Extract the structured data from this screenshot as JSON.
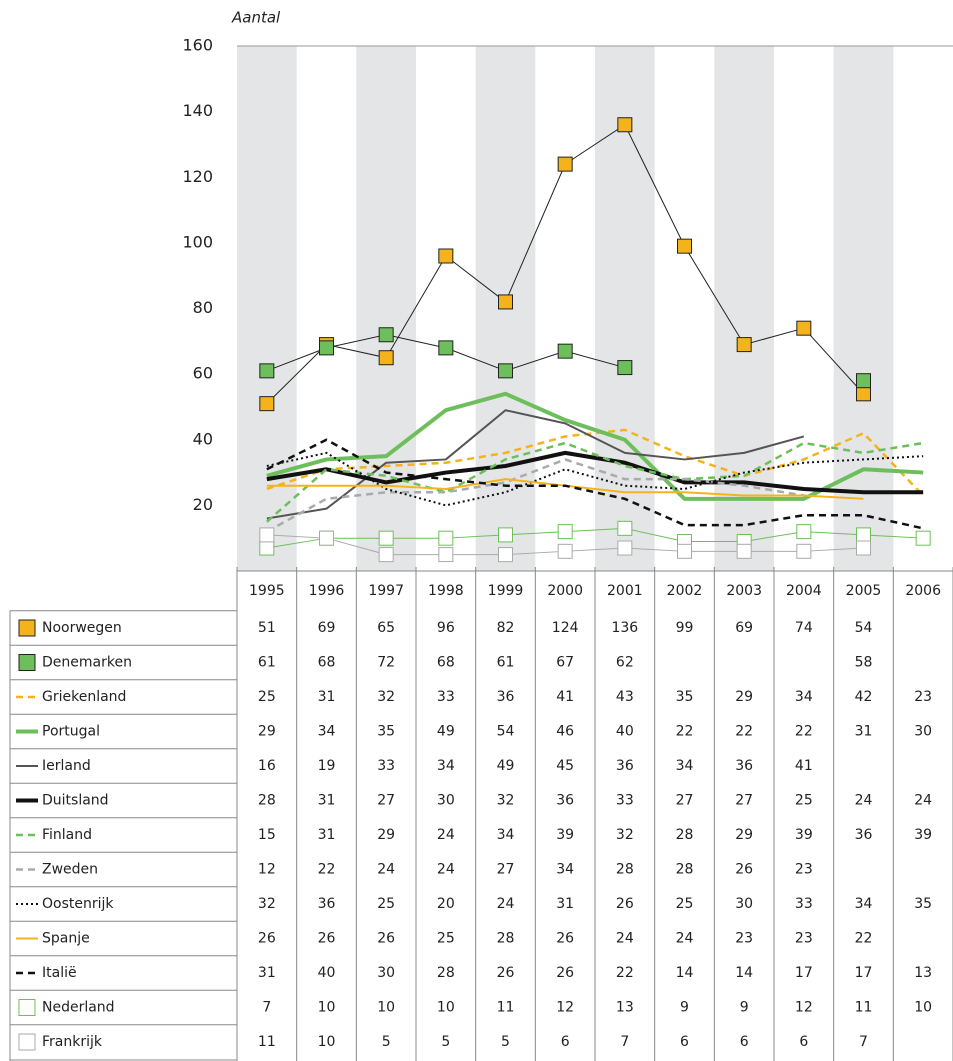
{
  "chart_data": {
    "type": "line",
    "y_label": "Aantal",
    "categories": [
      "1995",
      "1996",
      "1997",
      "1998",
      "1999",
      "2000",
      "2001",
      "2002",
      "2003",
      "2004",
      "2005",
      "2006"
    ],
    "ylim": [
      0,
      160
    ],
    "yticks": [
      20,
      40,
      60,
      80,
      100,
      120,
      140,
      160
    ],
    "series": [
      {
        "name": "Noorwegen",
        "color": "#f5b31b",
        "line": "thin",
        "marker": "filled-square",
        "values": [
          51,
          69,
          65,
          96,
          82,
          124,
          136,
          99,
          69,
          74,
          54,
          null
        ]
      },
      {
        "name": "Denemarken",
        "color": "#6cbf5a",
        "line": "thin",
        "marker": "filled-square",
        "values": [
          61,
          68,
          72,
          68,
          61,
          67,
          62,
          null,
          null,
          null,
          58,
          null
        ]
      },
      {
        "name": "Griekenland",
        "color": "#f5b31b",
        "line": "dashed",
        "values": [
          25,
          31,
          32,
          33,
          36,
          41,
          43,
          35,
          29,
          34,
          42,
          23
        ]
      },
      {
        "name": "Portugal",
        "color": "#6cbf5a",
        "line": "thick",
        "values": [
          29,
          34,
          35,
          49,
          54,
          46,
          40,
          22,
          22,
          22,
          31,
          30
        ]
      },
      {
        "name": "Ierland",
        "color": "#555555",
        "line": "medium",
        "values": [
          16,
          19,
          33,
          34,
          49,
          45,
          36,
          34,
          36,
          41,
          null,
          null
        ]
      },
      {
        "name": "Duitsland",
        "color": "#111111",
        "line": "thick",
        "values": [
          28,
          31,
          27,
          30,
          32,
          36,
          33,
          27,
          27,
          25,
          24,
          24
        ]
      },
      {
        "name": "Finland",
        "color": "#6cbf5a",
        "line": "dashed",
        "values": [
          15,
          31,
          29,
          24,
          34,
          39,
          32,
          28,
          29,
          39,
          36,
          39
        ]
      },
      {
        "name": "Zweden",
        "color": "#aaaaaa",
        "line": "dashed",
        "values": [
          12,
          22,
          24,
          24,
          27,
          34,
          28,
          28,
          26,
          23,
          null,
          null
        ]
      },
      {
        "name": "Oostenrijk",
        "color": "#111111",
        "line": "dotted",
        "values": [
          32,
          36,
          25,
          20,
          24,
          31,
          26,
          25,
          30,
          33,
          34,
          35
        ]
      },
      {
        "name": "Spanje",
        "color": "#f5b31b",
        "line": "medium",
        "values": [
          26,
          26,
          26,
          25,
          28,
          26,
          24,
          24,
          23,
          23,
          22,
          null
        ]
      },
      {
        "name": "Italië",
        "color": "#111111",
        "line": "dashed",
        "values": [
          31,
          40,
          30,
          28,
          26,
          26,
          22,
          14,
          14,
          17,
          17,
          13
        ]
      },
      {
        "name": "Nederland",
        "color": "#6cbf5a",
        "line": "thin",
        "marker": "open-square",
        "values": [
          7,
          10,
          10,
          10,
          11,
          12,
          13,
          9,
          9,
          12,
          11,
          10
        ]
      },
      {
        "name": "Frankrijk",
        "color": "#aaaaaa",
        "line": "thin",
        "marker": "open-square",
        "values": [
          11,
          10,
          5,
          5,
          5,
          6,
          7,
          6,
          6,
          6,
          7,
          null
        ]
      }
    ]
  }
}
